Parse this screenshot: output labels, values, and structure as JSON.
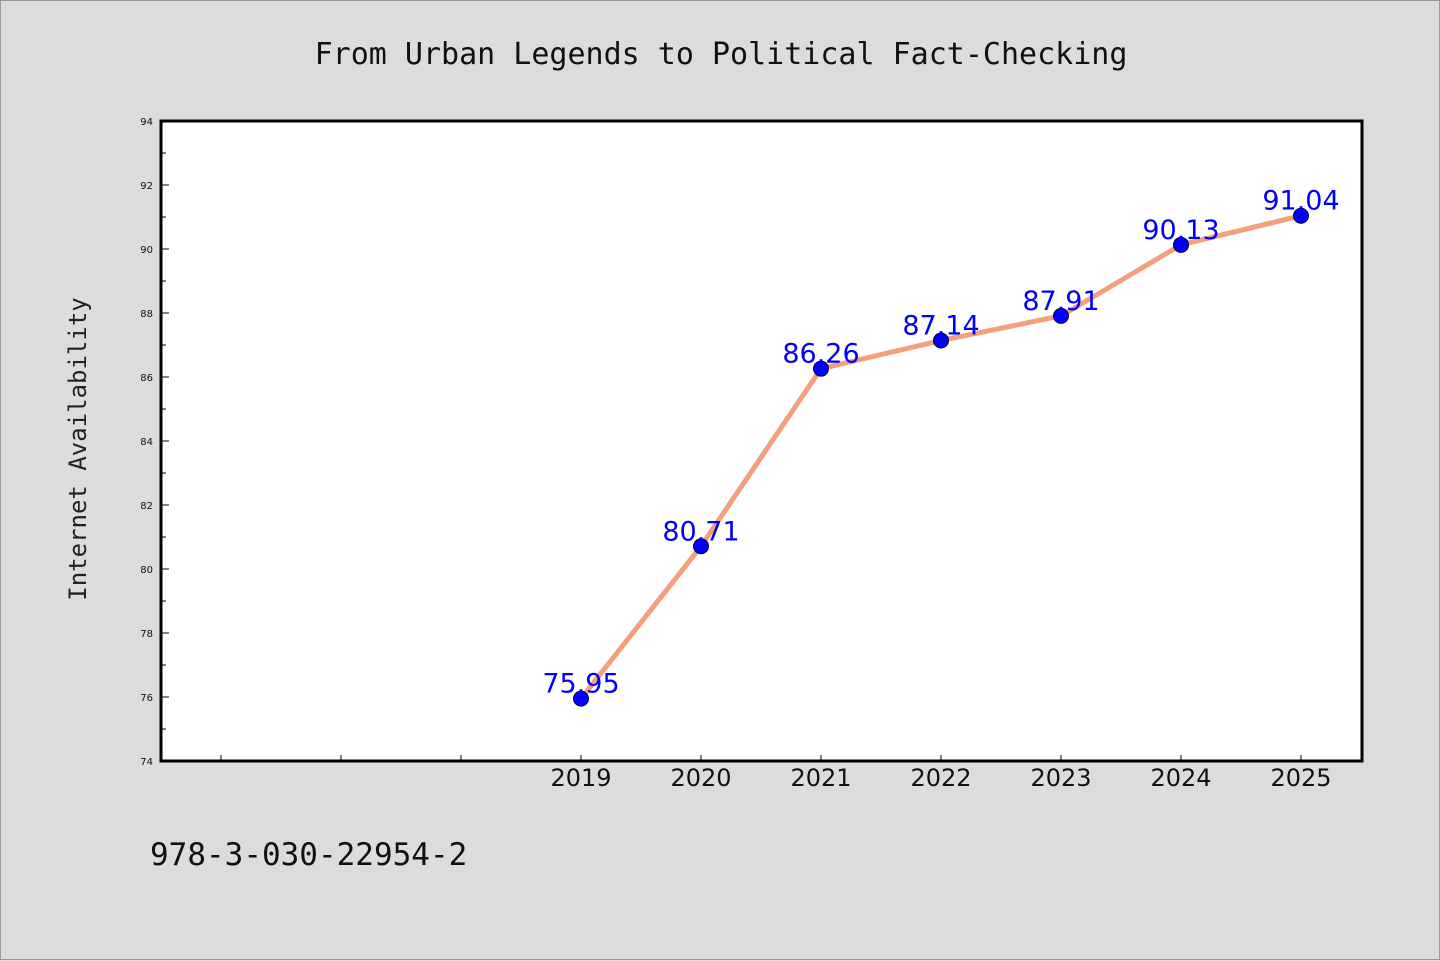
{
  "chart_data": {
    "type": "line",
    "title": "From Urban Legends to Political Fact-Checking",
    "xlabel": "",
    "ylabel": "Internet Availability",
    "categories": [
      "2019",
      "2020",
      "2021",
      "2022",
      "2023",
      "2024",
      "2025"
    ],
    "series": [
      {
        "values": [
          75.95,
          80.71,
          86.26,
          87.14,
          87.91,
          90.13,
          91.04
        ],
        "data_labels": [
          "75.95",
          "80.71",
          "86.26",
          "87.14",
          "87.91",
          "90.13",
          "91.04"
        ],
        "line_color": "#f4a07c",
        "marker_color": "#0000ff"
      }
    ],
    "ylim": [
      74,
      94
    ],
    "yticks": [
      "74",
      "76",
      "78",
      "80",
      "82",
      "84",
      "86",
      "88",
      "90",
      "92",
      "94"
    ],
    "grid": false,
    "legend": "none"
  },
  "footnote": "978-3-030-22954-2",
  "colors": {
    "background": "#dcdcdc",
    "plot_area": "#ffffff",
    "line": "#f4a07c",
    "marker": "#0000ff",
    "data_label": "#0000ff"
  }
}
